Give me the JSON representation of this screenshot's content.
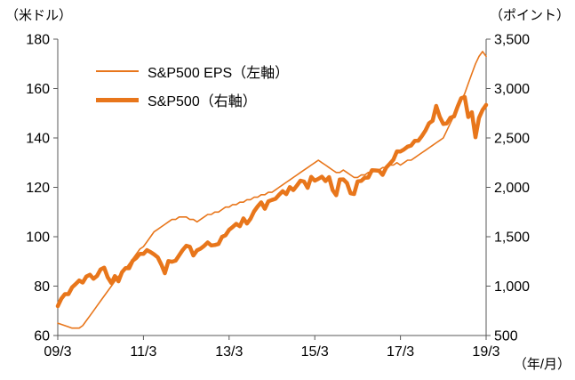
{
  "labels": {
    "left_axis_unit": "（米ドル）",
    "right_axis_unit": "（ポイント）",
    "x_axis_unit": "（年/月）"
  },
  "legend": {
    "items": [
      {
        "label": "S&P500 EPS（左軸）",
        "style": "thin"
      },
      {
        "label": "S&P500（右軸）",
        "style": "thick"
      }
    ]
  },
  "chart_data": {
    "type": "line",
    "title": "",
    "color": "#E8761B",
    "axis_line_color": "#595959",
    "x_tick_labels": [
      "09/3",
      "11/3",
      "13/3",
      "15/3",
      "17/3",
      "19/3"
    ],
    "x_tick_positions": [
      0,
      24,
      48,
      72,
      96,
      120
    ],
    "left_axis": {
      "min": 60,
      "max": 180,
      "step": 20,
      "tick_labels": [
        "180",
        "160",
        "140",
        "120",
        "100",
        "80",
        "60"
      ]
    },
    "right_axis": {
      "min": 500,
      "max": 3500,
      "step": 500,
      "tick_labels": [
        "3,500",
        "3,000",
        "2,500",
        "2,000",
        "1,500",
        "1,000",
        "500"
      ]
    },
    "series": [
      {
        "name": "S&P500 EPS（左軸）",
        "data_name": "eps-line",
        "axis": "left",
        "width": 1.6,
        "values": [
          65,
          64.5,
          64,
          63.5,
          63,
          63,
          63,
          64,
          66,
          68,
          70,
          72,
          74,
          76,
          78,
          80,
          82,
          84,
          85,
          87,
          89,
          91,
          93,
          95,
          96,
          98,
          100,
          102,
          103,
          104,
          105,
          106,
          107,
          107,
          108,
          108,
          108,
          107,
          107,
          106,
          107,
          108,
          109,
          109,
          110,
          110,
          111,
          112,
          112,
          113,
          113,
          114,
          114,
          115,
          115,
          116,
          116,
          117,
          117,
          118,
          118,
          119,
          120,
          121,
          122,
          123,
          124,
          125,
          126,
          127,
          128,
          129,
          130,
          131,
          130,
          129,
          128,
          127,
          126,
          126,
          127,
          126,
          125,
          124,
          124,
          125,
          125,
          126,
          126,
          127,
          127,
          128,
          128,
          129,
          129,
          130,
          129,
          130,
          131,
          131,
          132,
          133,
          134,
          135,
          136,
          137,
          138,
          139,
          140,
          143,
          146,
          149,
          152,
          155,
          158,
          162,
          166,
          170,
          173,
          175,
          173
        ]
      },
      {
        "name": "S&P500（右軸）",
        "data_name": "index-line",
        "axis": "right",
        "width": 4.5,
        "values": [
          797,
          873,
          919,
          919,
          987,
          1021,
          1057,
          1036,
          1096,
          1115,
          1074,
          1104,
          1169,
          1187,
          1089,
          1031,
          1102,
          1049,
          1141,
          1183,
          1181,
          1258,
          1286,
          1327,
          1326,
          1364,
          1345,
          1321,
          1292,
          1219,
          1131,
          1253,
          1247,
          1258,
          1312,
          1366,
          1408,
          1398,
          1310,
          1362,
          1379,
          1407,
          1441,
          1412,
          1416,
          1426,
          1498,
          1515,
          1569,
          1598,
          1631,
          1606,
          1686,
          1633,
          1682,
          1757,
          1806,
          1848,
          1783,
          1859,
          1872,
          1884,
          1924,
          1960,
          1931,
          2003,
          1972,
          2018,
          2068,
          2059,
          1995,
          2105,
          2068,
          2086,
          2107,
          2063,
          2104,
          1972,
          1920,
          2079,
          2080,
          2044,
          1940,
          1932,
          2060,
          2065,
          2097,
          2099,
          2174,
          2171,
          2168,
          2126,
          2199,
          2239,
          2279,
          2364,
          2363,
          2384,
          2412,
          2423,
          2470,
          2472,
          2519,
          2575,
          2648,
          2674,
          2824,
          2714,
          2641,
          2648,
          2705,
          2718,
          2816,
          2902,
          2914,
          2712,
          2760,
          2507,
          2704,
          2784,
          2834
        ]
      }
    ]
  }
}
